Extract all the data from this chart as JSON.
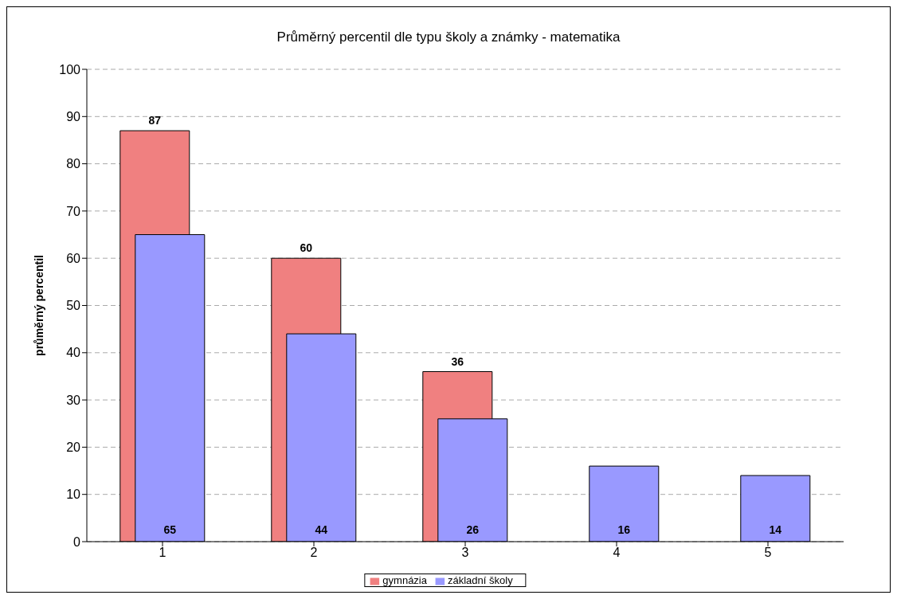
{
  "chart_data": {
    "type": "bar",
    "title": "Průměrný percentil dle typu školy a známky - matematika",
    "ylabel": "průměrný percentil",
    "categories": [
      "1",
      "2",
      "3",
      "4",
      "5"
    ],
    "series": [
      {
        "name": "gymnázia",
        "color": "#f08080",
        "values": [
          87,
          60,
          36,
          null,
          null
        ]
      },
      {
        "name": "základní školy",
        "color": "#9999ff",
        "values": [
          65,
          44,
          26,
          16,
          14
        ]
      }
    ],
    "ylim": [
      0,
      100
    ],
    "yticks": [
      0,
      10,
      20,
      30,
      40,
      50,
      60,
      70,
      80,
      90,
      100
    ],
    "grid": "y",
    "legend": "bottom",
    "data_labels": true
  }
}
